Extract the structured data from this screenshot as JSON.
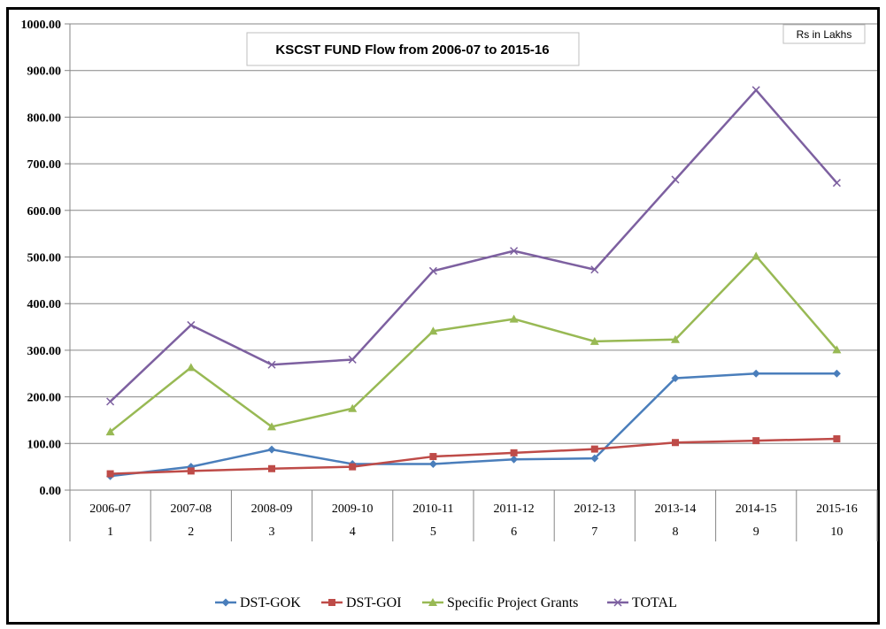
{
  "chart_data": {
    "type": "line",
    "title": "KSCST FUND Flow from 2006-07 to 2015-16",
    "unit_note": "Rs in Lakhs",
    "categories": [
      "2006-07",
      "2007-08",
      "2008-09",
      "2009-10",
      "2010-11",
      "2011-12",
      "2012-13",
      "2013-14",
      "2014-15",
      "2015-16"
    ],
    "category_numbers": [
      "1",
      "2",
      "3",
      "4",
      "5",
      "6",
      "7",
      "8",
      "9",
      "10"
    ],
    "ylim": [
      0,
      1000
    ],
    "y_ticks": [
      "0.00",
      "100.00",
      "200.00",
      "300.00",
      "400.00",
      "500.00",
      "600.00",
      "700.00",
      "800.00",
      "900.00",
      "1000.00"
    ],
    "grid": true,
    "legend_position": "bottom",
    "series": [
      {
        "name": "DST-GOK",
        "color": "#4a7ebb",
        "marker": "diamond",
        "values": [
          30,
          50,
          87,
          56,
          56,
          66,
          68,
          240,
          250,
          250
        ]
      },
      {
        "name": "DST-GOI",
        "color": "#be4b48",
        "marker": "square",
        "values": [
          35,
          41,
          46,
          50,
          72,
          80,
          88,
          102,
          106,
          110
        ]
      },
      {
        "name": "Specific Project Grants",
        "color": "#98b954",
        "marker": "triangle",
        "values": [
          125,
          263,
          136,
          175,
          341,
          367,
          319,
          323,
          502,
          301
        ]
      },
      {
        "name": "TOTAL",
        "color": "#7d60a0",
        "marker": "x",
        "values": [
          190,
          354,
          269,
          280,
          470,
          513,
          473,
          666,
          858,
          659
        ]
      }
    ]
  }
}
